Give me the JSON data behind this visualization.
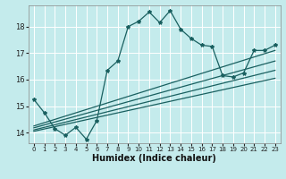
{
  "title": "",
  "xlabel": "Humidex (Indice chaleur)",
  "background_color": "#c4ebec",
  "line_color": "#1a6060",
  "grid_color": "#ffffff",
  "xlim": [
    -0.5,
    23.5
  ],
  "ylim": [
    13.6,
    18.8
  ],
  "yticks": [
    14,
    15,
    16,
    17,
    18
  ],
  "xticks": [
    0,
    1,
    2,
    3,
    4,
    5,
    6,
    7,
    8,
    9,
    10,
    11,
    12,
    13,
    14,
    15,
    16,
    17,
    18,
    19,
    20,
    21,
    22,
    23
  ],
  "main_line_x": [
    0,
    1,
    2,
    3,
    4,
    5,
    6,
    7,
    8,
    9,
    10,
    11,
    12,
    13,
    14,
    15,
    16,
    17,
    18,
    19,
    20,
    21,
    22,
    23
  ],
  "main_line_y": [
    15.25,
    14.75,
    14.15,
    13.9,
    14.2,
    13.75,
    14.45,
    16.35,
    16.7,
    18.0,
    18.2,
    18.55,
    18.15,
    18.6,
    17.9,
    17.55,
    17.3,
    17.25,
    16.15,
    16.1,
    16.25,
    17.1,
    17.1,
    17.3
  ],
  "trend_lines": [
    {
      "x": [
        0,
        23
      ],
      "y": [
        14.05,
        16.05
      ]
    },
    {
      "x": [
        0,
        23
      ],
      "y": [
        14.1,
        16.35
      ]
    },
    {
      "x": [
        0,
        23
      ],
      "y": [
        14.18,
        16.7
      ]
    },
    {
      "x": [
        0,
        23
      ],
      "y": [
        14.25,
        17.1
      ]
    }
  ],
  "xlabel_fontsize": 7,
  "tick_fontsize": 5,
  "linewidth": 0.9,
  "marker_size": 3
}
